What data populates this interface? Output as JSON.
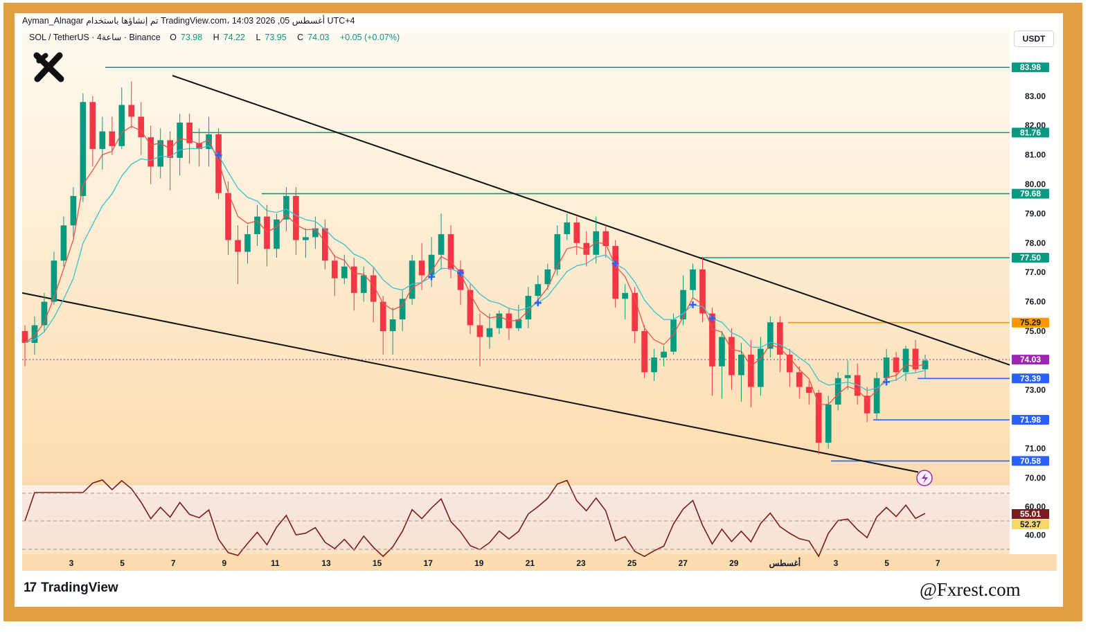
{
  "header": {
    "text": "Ayman_Alnagar تم إنشاؤها باستخدام TradingView.com، 14:03 2026 ,05 أغسطس UTC+4"
  },
  "symbol": {
    "pair": "SOL / TetherUS · 4ساعة · Binance",
    "open_label": "O",
    "open": "73.98",
    "high_label": "H",
    "high": "74.22",
    "low_label": "L",
    "low": "73.95",
    "close_label": "C",
    "close": "74.03",
    "change": "+0.05 (+0.07%)"
  },
  "currency": "USDT",
  "branding": {
    "tradingview": "TradingView",
    "watermark": "@Fxrest.com"
  },
  "colors": {
    "frame": "#e0a040",
    "up": "#089981",
    "down": "#f23645",
    "ema_fast": "#f0504a",
    "ema_slow": "#3bbfcf",
    "resistance": "#089981",
    "support": "#2962ff",
    "orange_level": "#ff9800",
    "rsi": "#7b1c1c"
  },
  "chart_data": {
    "type": "candlestick",
    "yaxis": {
      "min": 70,
      "max": 84,
      "ticks": [
        "70.00",
        "71.00",
        "73.00",
        "75.00",
        "76.00",
        "77.00",
        "78.00",
        "79.00",
        "80.00",
        "81.00",
        "82.00",
        "83.00"
      ]
    },
    "xaxis": {
      "labels": [
        "3",
        "5",
        "7",
        "9",
        "11",
        "13",
        "15",
        "17",
        "19",
        "21",
        "23",
        "25",
        "27",
        "29",
        "أغسطس",
        "3",
        "5",
        "7"
      ]
    },
    "levels": [
      {
        "label": "83.98",
        "price": 83.98,
        "kind": "resistance"
      },
      {
        "label": "81.76",
        "price": 81.76,
        "kind": "resistance"
      },
      {
        "label": "79.68",
        "price": 79.68,
        "kind": "resistance"
      },
      {
        "label": "77.50",
        "price": 77.5,
        "kind": "resistance"
      },
      {
        "label": "75.29",
        "price": 75.29,
        "kind": "orange"
      },
      {
        "label": "74.03",
        "price": 74.03,
        "kind": "current"
      },
      {
        "label": "73.39",
        "price": 73.39,
        "kind": "support"
      },
      {
        "label": "71.98",
        "price": 71.98,
        "kind": "support"
      },
      {
        "label": "70.58",
        "price": 70.58,
        "kind": "support"
      }
    ],
    "trendlines": [
      {
        "name": "upper",
        "from": {
          "x": "7",
          "y": 83.7
        },
        "to": {
          "x": "7",
          "y": 73.8
        }
      },
      {
        "name": "lower",
        "from": {
          "x": "1",
          "y": 76.3
        },
        "to": {
          "x": "5",
          "y": 70.2
        }
      }
    ],
    "series": [
      {
        "name": "EMA fast",
        "color": "#f0504a"
      },
      {
        "name": "EMA slow",
        "color": "#3bbfcf"
      }
    ],
    "candles": [
      [
        75.0,
        74.6,
        75.2,
        73.8
      ],
      [
        74.6,
        75.2,
        75.5,
        74.2
      ],
      [
        75.2,
        76.0,
        76.3,
        75.0
      ],
      [
        76.0,
        77.4,
        77.7,
        75.9
      ],
      [
        77.4,
        78.6,
        78.9,
        77.2
      ],
      [
        78.6,
        79.6,
        79.9,
        78.2
      ],
      [
        79.6,
        82.8,
        83.1,
        79.4
      ],
      [
        82.8,
        81.2,
        83.0,
        80.6
      ],
      [
        81.2,
        81.8,
        82.3,
        80.5
      ],
      [
        81.8,
        81.3,
        82.3,
        81.0
      ],
      [
        81.3,
        82.7,
        83.3,
        81.2
      ],
      [
        82.7,
        82.3,
        83.5,
        81.9
      ],
      [
        82.3,
        81.6,
        82.8,
        81.0
      ],
      [
        81.6,
        80.6,
        82.0,
        80.0
      ],
      [
        80.6,
        81.5,
        81.9,
        80.2
      ],
      [
        81.5,
        80.9,
        81.8,
        79.8
      ],
      [
        80.9,
        82.1,
        82.4,
        80.3
      ],
      [
        82.1,
        81.4,
        82.4,
        80.7
      ],
      [
        81.4,
        81.2,
        81.9,
        80.6
      ],
      [
        81.2,
        81.7,
        82.3,
        80.6
      ],
      [
        81.7,
        79.7,
        81.9,
        79.5
      ],
      [
        79.7,
        78.1,
        80.1,
        77.6
      ],
      [
        78.1,
        77.7,
        78.6,
        76.6
      ],
      [
        77.7,
        78.3,
        78.6,
        77.3
      ],
      [
        78.3,
        78.9,
        79.3,
        77.9
      ],
      [
        78.9,
        77.8,
        79.3,
        77.2
      ],
      [
        77.8,
        78.8,
        79.0,
        77.5
      ],
      [
        78.8,
        79.6,
        79.9,
        78.4
      ],
      [
        79.6,
        78.1,
        79.9,
        77.6
      ],
      [
        78.1,
        78.2,
        78.5,
        77.5
      ],
      [
        78.2,
        78.5,
        78.9,
        77.8
      ],
      [
        78.5,
        77.4,
        78.8,
        77.1
      ],
      [
        77.4,
        76.8,
        77.6,
        76.2
      ],
      [
        76.8,
        77.2,
        77.6,
        76.6
      ],
      [
        77.2,
        76.3,
        77.5,
        75.7
      ],
      [
        76.3,
        76.9,
        77.2,
        76.0
      ],
      [
        76.9,
        76.0,
        77.2,
        75.3
      ],
      [
        76.0,
        75.0,
        76.2,
        74.2
      ],
      [
        75.0,
        75.4,
        75.8,
        74.2
      ],
      [
        75.4,
        76.1,
        76.4,
        75.0
      ],
      [
        76.1,
        77.4,
        77.6,
        75.9
      ],
      [
        77.4,
        76.9,
        78.0,
        76.4
      ],
      [
        76.9,
        77.6,
        78.2,
        76.5
      ],
      [
        77.6,
        78.3,
        79.0,
        77.1
      ],
      [
        78.3,
        77.1,
        78.6,
        76.8
      ],
      [
        77.1,
        76.4,
        77.4,
        75.9
      ],
      [
        76.4,
        75.2,
        76.6,
        74.9
      ],
      [
        75.2,
        74.8,
        75.6,
        73.8
      ],
      [
        74.8,
        75.1,
        75.6,
        74.4
      ],
      [
        75.1,
        75.6,
        75.7,
        74.9
      ],
      [
        75.6,
        75.1,
        75.8,
        74.7
      ],
      [
        75.1,
        75.4,
        75.9,
        75.0
      ],
      [
        75.4,
        76.2,
        76.5,
        75.1
      ],
      [
        76.2,
        76.6,
        76.9,
        75.9
      ],
      [
        76.6,
        77.1,
        77.3,
        76.4
      ],
      [
        77.1,
        78.3,
        78.6,
        76.9
      ],
      [
        78.3,
        78.7,
        79.0,
        78.1
      ],
      [
        78.7,
        78.0,
        78.9,
        77.6
      ],
      [
        78.0,
        77.6,
        78.4,
        77.2
      ],
      [
        77.6,
        78.4,
        78.9,
        77.3
      ],
      [
        78.4,
        77.9,
        78.6,
        77.5
      ],
      [
        77.9,
        76.1,
        78.1,
        75.8
      ],
      [
        76.1,
        76.3,
        76.6,
        75.4
      ],
      [
        76.3,
        75.0,
        76.5,
        74.6
      ],
      [
        75.0,
        73.6,
        75.2,
        73.4
      ],
      [
        73.6,
        74.1,
        74.4,
        73.3
      ],
      [
        74.1,
        74.3,
        74.5,
        73.8
      ],
      [
        74.3,
        75.4,
        75.6,
        74.2
      ],
      [
        75.4,
        76.4,
        76.9,
        75.2
      ],
      [
        76.4,
        77.1,
        77.3,
        76.1
      ],
      [
        77.1,
        75.6,
        77.5,
        75.3
      ],
      [
        75.6,
        73.8,
        75.8,
        72.8
      ],
      [
        73.8,
        74.8,
        75.0,
        72.7
      ],
      [
        74.8,
        73.5,
        75.1,
        73.0
      ],
      [
        73.5,
        74.2,
        74.6,
        72.6
      ],
      [
        74.2,
        73.1,
        74.7,
        72.4
      ],
      [
        73.1,
        74.4,
        74.8,
        72.8
      ],
      [
        74.4,
        75.3,
        75.5,
        74.1
      ],
      [
        75.3,
        74.2,
        75.5,
        73.6
      ],
      [
        74.2,
        73.6,
        74.4,
        73.1
      ],
      [
        73.6,
        73.1,
        73.8,
        72.7
      ],
      [
        73.1,
        72.9,
        73.3,
        72.5
      ],
      [
        72.9,
        71.2,
        73.0,
        70.8
      ],
      [
        71.2,
        72.5,
        72.8,
        71.0
      ],
      [
        72.5,
        73.4,
        73.6,
        72.3
      ],
      [
        73.4,
        73.5,
        74.0,
        73.0
      ],
      [
        73.5,
        72.8,
        73.9,
        72.5
      ],
      [
        72.8,
        72.2,
        73.1,
        71.9
      ],
      [
        72.2,
        73.4,
        73.6,
        72.0
      ],
      [
        73.4,
        74.1,
        74.4,
        73.3
      ],
      [
        74.1,
        73.6,
        74.3,
        73.3
      ],
      [
        73.6,
        74.4,
        74.5,
        73.3
      ],
      [
        74.4,
        73.7,
        74.7,
        73.6
      ],
      [
        73.7,
        74.0,
        74.2,
        73.4
      ]
    ],
    "rsi": {
      "ticks": [
        "60.00",
        "40.00"
      ],
      "value_1": "55.01",
      "value_2": "52.37"
    }
  }
}
